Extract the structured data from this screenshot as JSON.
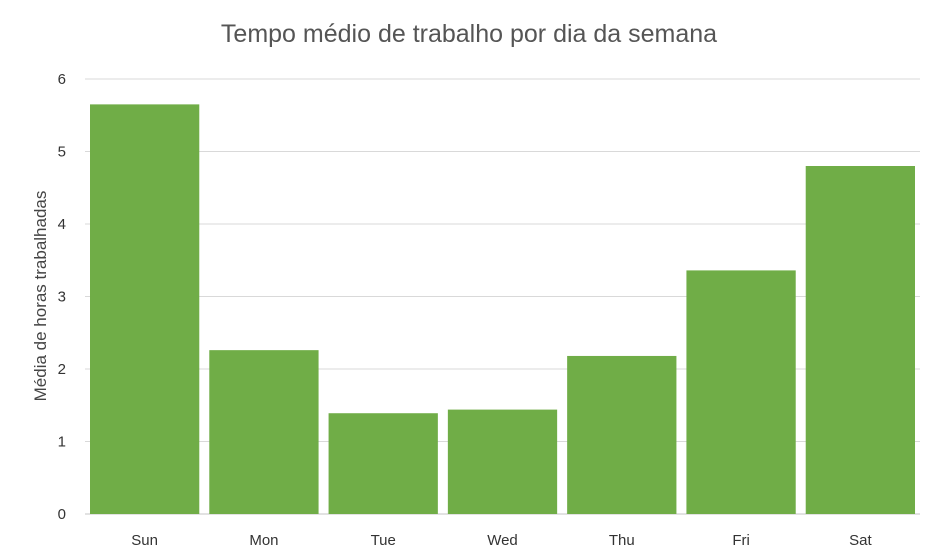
{
  "chart_data": {
    "type": "bar",
    "title": "Tempo médio de trabalho por dia da semana",
    "xlabel": "",
    "ylabel": "Média de horas trabalhadas",
    "categories": [
      "Sun",
      "Mon",
      "Tue",
      "Wed",
      "Thu",
      "Fri",
      "Sat"
    ],
    "values": [
      5.65,
      2.26,
      1.39,
      1.44,
      2.18,
      3.36,
      4.8
    ],
    "ylim": [
      0,
      6
    ],
    "yticks": [
      0,
      1,
      2,
      3,
      4,
      5,
      6
    ],
    "grid": true,
    "legend": "none",
    "bar_color": "#70ad47"
  }
}
